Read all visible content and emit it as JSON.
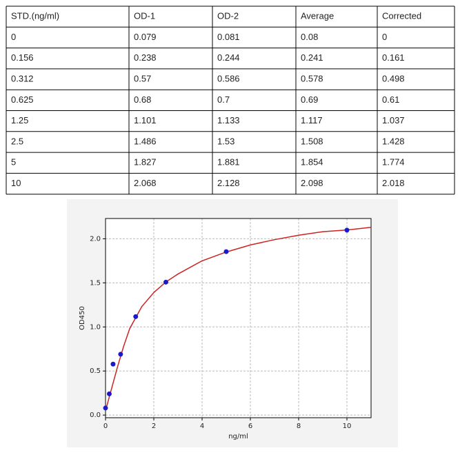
{
  "table": {
    "header": [
      "STD.(ng/ml)",
      "OD-1",
      "OD-2",
      "Average",
      "Corrected"
    ],
    "rows": [
      [
        "0",
        "0.079",
        "0.081",
        "0.08",
        "0"
      ],
      [
        "0.156",
        "0.238",
        "0.244",
        "0.241",
        "0.161"
      ],
      [
        "0.312",
        "0.57",
        "0.586",
        "0.578",
        "0.498"
      ],
      [
        "0.625",
        "0.68",
        "0.7",
        "0.69",
        "0.61"
      ],
      [
        "1.25",
        "1.101",
        "1.133",
        "1.117",
        "1.037"
      ],
      [
        "2.5",
        "1.486",
        "1.53",
        "1.508",
        "1.428"
      ],
      [
        "5",
        "1.827",
        "1.881",
        "1.854",
        "1.774"
      ],
      [
        "10",
        "2.068",
        "2.128",
        "2.098",
        "2.018"
      ]
    ]
  },
  "chart_data": {
    "type": "scatter",
    "xlabel": "ng/ml",
    "ylabel": "OD450",
    "xlim": [
      0,
      11
    ],
    "ylim": [
      -0.03,
      2.23
    ],
    "xticks": [
      0,
      2,
      4,
      6,
      8,
      10
    ],
    "yticks": [
      {
        "value": 0,
        "label": "0.0"
      },
      0.5,
      {
        "value": 1,
        "label": "1.0"
      },
      1.5,
      {
        "value": 2,
        "label": "2.0"
      }
    ],
    "grid": true,
    "series": [
      {
        "color": "#cc2222",
        "line": true,
        "x": [
          0,
          0.25,
          0.5,
          0.75,
          1,
          1.5,
          2,
          2.5,
          3,
          4,
          5,
          6,
          7,
          8,
          9,
          10,
          11
        ],
        "values": [
          0.05,
          0.3,
          0.55,
          0.78,
          0.98,
          1.23,
          1.39,
          1.51,
          1.6,
          1.75,
          1.85,
          1.93,
          1.99,
          2.04,
          2.08,
          2.1,
          2.13
        ]
      },
      {
        "color": "#1a1acc",
        "x": [
          0,
          0.156,
          0.312,
          0.625,
          1.25,
          2.5,
          5,
          10
        ],
        "values": [
          0.08,
          0.241,
          0.578,
          0.69,
          1.117,
          1.508,
          1.854,
          2.098
        ]
      }
    ]
  }
}
